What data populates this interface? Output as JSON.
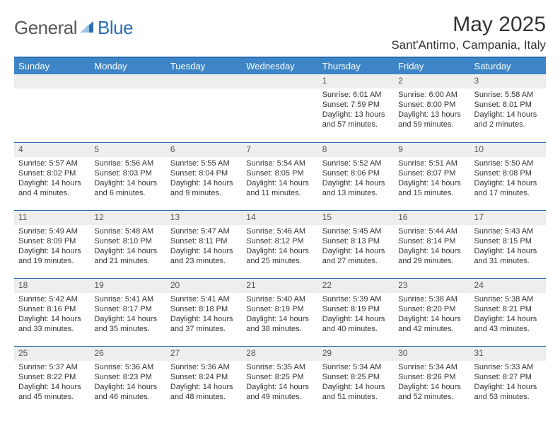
{
  "brand": {
    "general": "General",
    "blue": "Blue",
    "mark_color": "#2a6db3"
  },
  "title": "May 2025",
  "location": "Sant'Antimo, Campania, Italy",
  "colors": {
    "header_bg": "#3d85c6",
    "header_text": "#ffffff",
    "row_border": "#2a6db3",
    "daynum_bg": "#eeeeee",
    "body_text": "#333333"
  },
  "typography": {
    "title_fontsize": 30,
    "location_fontsize": 17,
    "weekday_fontsize": 13,
    "cell_fontsize": 11
  },
  "weekdays": [
    "Sunday",
    "Monday",
    "Tuesday",
    "Wednesday",
    "Thursday",
    "Friday",
    "Saturday"
  ],
  "weeks": [
    [
      null,
      null,
      null,
      null,
      {
        "n": "1",
        "sunrise": "6:01 AM",
        "sunset": "7:59 PM",
        "daylight": "13 hours and 57 minutes."
      },
      {
        "n": "2",
        "sunrise": "6:00 AM",
        "sunset": "8:00 PM",
        "daylight": "13 hours and 59 minutes."
      },
      {
        "n": "3",
        "sunrise": "5:58 AM",
        "sunset": "8:01 PM",
        "daylight": "14 hours and 2 minutes."
      }
    ],
    [
      {
        "n": "4",
        "sunrise": "5:57 AM",
        "sunset": "8:02 PM",
        "daylight": "14 hours and 4 minutes."
      },
      {
        "n": "5",
        "sunrise": "5:56 AM",
        "sunset": "8:03 PM",
        "daylight": "14 hours and 6 minutes."
      },
      {
        "n": "6",
        "sunrise": "5:55 AM",
        "sunset": "8:04 PM",
        "daylight": "14 hours and 9 minutes."
      },
      {
        "n": "7",
        "sunrise": "5:54 AM",
        "sunset": "8:05 PM",
        "daylight": "14 hours and 11 minutes."
      },
      {
        "n": "8",
        "sunrise": "5:52 AM",
        "sunset": "8:06 PM",
        "daylight": "14 hours and 13 minutes."
      },
      {
        "n": "9",
        "sunrise": "5:51 AM",
        "sunset": "8:07 PM",
        "daylight": "14 hours and 15 minutes."
      },
      {
        "n": "10",
        "sunrise": "5:50 AM",
        "sunset": "8:08 PM",
        "daylight": "14 hours and 17 minutes."
      }
    ],
    [
      {
        "n": "11",
        "sunrise": "5:49 AM",
        "sunset": "8:09 PM",
        "daylight": "14 hours and 19 minutes."
      },
      {
        "n": "12",
        "sunrise": "5:48 AM",
        "sunset": "8:10 PM",
        "daylight": "14 hours and 21 minutes."
      },
      {
        "n": "13",
        "sunrise": "5:47 AM",
        "sunset": "8:11 PM",
        "daylight": "14 hours and 23 minutes."
      },
      {
        "n": "14",
        "sunrise": "5:46 AM",
        "sunset": "8:12 PM",
        "daylight": "14 hours and 25 minutes."
      },
      {
        "n": "15",
        "sunrise": "5:45 AM",
        "sunset": "8:13 PM",
        "daylight": "14 hours and 27 minutes."
      },
      {
        "n": "16",
        "sunrise": "5:44 AM",
        "sunset": "8:14 PM",
        "daylight": "14 hours and 29 minutes."
      },
      {
        "n": "17",
        "sunrise": "5:43 AM",
        "sunset": "8:15 PM",
        "daylight": "14 hours and 31 minutes."
      }
    ],
    [
      {
        "n": "18",
        "sunrise": "5:42 AM",
        "sunset": "8:16 PM",
        "daylight": "14 hours and 33 minutes."
      },
      {
        "n": "19",
        "sunrise": "5:41 AM",
        "sunset": "8:17 PM",
        "daylight": "14 hours and 35 minutes."
      },
      {
        "n": "20",
        "sunrise": "5:41 AM",
        "sunset": "8:18 PM",
        "daylight": "14 hours and 37 minutes."
      },
      {
        "n": "21",
        "sunrise": "5:40 AM",
        "sunset": "8:19 PM",
        "daylight": "14 hours and 38 minutes."
      },
      {
        "n": "22",
        "sunrise": "5:39 AM",
        "sunset": "8:19 PM",
        "daylight": "14 hours and 40 minutes."
      },
      {
        "n": "23",
        "sunrise": "5:38 AM",
        "sunset": "8:20 PM",
        "daylight": "14 hours and 42 minutes."
      },
      {
        "n": "24",
        "sunrise": "5:38 AM",
        "sunset": "8:21 PM",
        "daylight": "14 hours and 43 minutes."
      }
    ],
    [
      {
        "n": "25",
        "sunrise": "5:37 AM",
        "sunset": "8:22 PM",
        "daylight": "14 hours and 45 minutes."
      },
      {
        "n": "26",
        "sunrise": "5:36 AM",
        "sunset": "8:23 PM",
        "daylight": "14 hours and 46 minutes."
      },
      {
        "n": "27",
        "sunrise": "5:36 AM",
        "sunset": "8:24 PM",
        "daylight": "14 hours and 48 minutes."
      },
      {
        "n": "28",
        "sunrise": "5:35 AM",
        "sunset": "8:25 PM",
        "daylight": "14 hours and 49 minutes."
      },
      {
        "n": "29",
        "sunrise": "5:34 AM",
        "sunset": "8:25 PM",
        "daylight": "14 hours and 51 minutes."
      },
      {
        "n": "30",
        "sunrise": "5:34 AM",
        "sunset": "8:26 PM",
        "daylight": "14 hours and 52 minutes."
      },
      {
        "n": "31",
        "sunrise": "5:33 AM",
        "sunset": "8:27 PM",
        "daylight": "14 hours and 53 minutes."
      }
    ]
  ],
  "labels": {
    "sunrise": "Sunrise:",
    "sunset": "Sunset:",
    "daylight": "Daylight:"
  }
}
